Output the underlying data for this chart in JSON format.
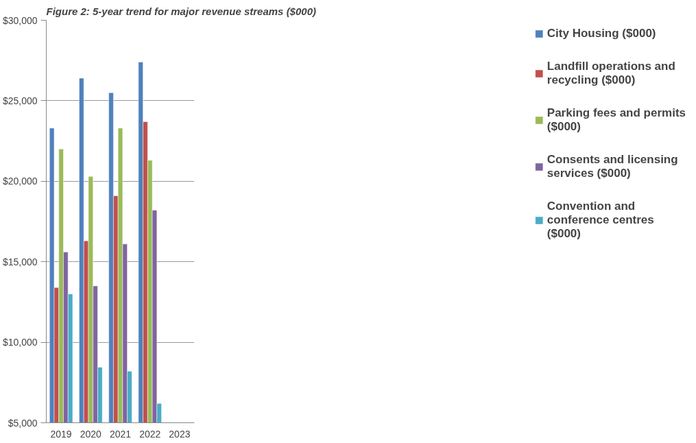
{
  "chart_data": {
    "type": "bar",
    "title": "Figure 2: 5-year trend for major revenue streams ($000)",
    "categories": [
      "2019",
      "2020",
      "2021",
      "2022",
      "2023"
    ],
    "series": [
      {
        "name": "City Housing ($000)",
        "color": "#4f81bd",
        "values": [
          23300,
          26400,
          25500,
          27400,
          null
        ]
      },
      {
        "name": "Landfill operations and recycling ($000)",
        "color": "#c0504d",
        "values": [
          13400,
          16300,
          19100,
          23700,
          null
        ]
      },
      {
        "name": "Parking fees and permits ($000)",
        "color": "#9bbb59",
        "values": [
          22000,
          20300,
          23300,
          21300,
          null
        ]
      },
      {
        "name": "Consents and licensing services ($000)",
        "color": "#8064a2",
        "values": [
          15600,
          13500,
          16100,
          18200,
          null
        ]
      },
      {
        "name": "Convention and conference centres ($000)",
        "color": "#4bacc6",
        "values": [
          13000,
          8450,
          8200,
          6200,
          null
        ]
      }
    ],
    "ylim": [
      5000,
      30000
    ],
    "yticks": [
      {
        "value": 5000,
        "label": "$5,000"
      },
      {
        "value": 10000,
        "label": "$10,000"
      },
      {
        "value": 15000,
        "label": "$15,000"
      },
      {
        "value": 20000,
        "label": "$20,000"
      },
      {
        "value": 25000,
        "label": "$25,000"
      },
      {
        "value": 30000,
        "label": "$30,000"
      }
    ],
    "grid": "y",
    "legend": "right"
  }
}
